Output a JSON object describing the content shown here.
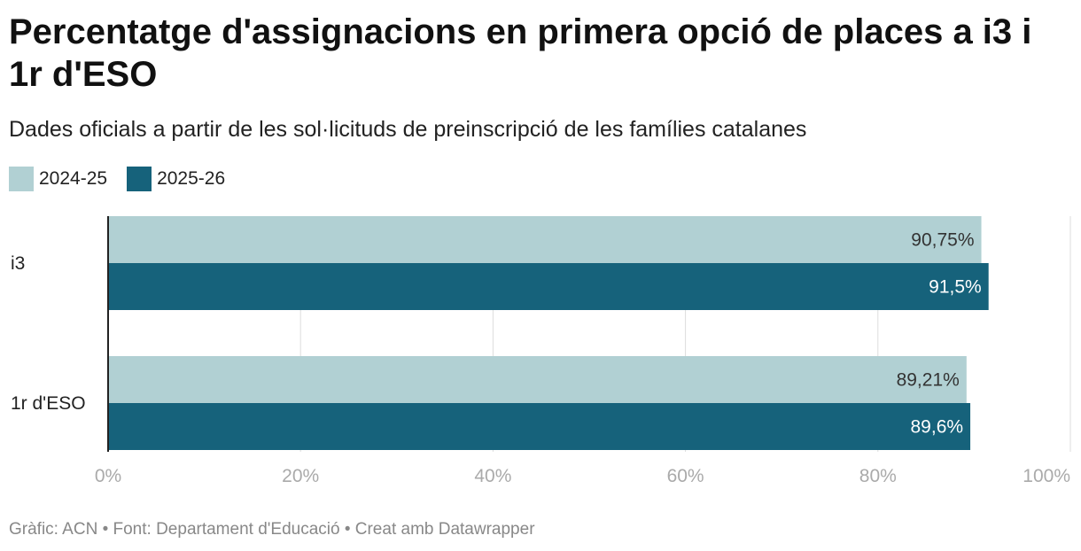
{
  "header": {
    "title": "Percentatge d'assignacions en primera opció de places a i3 i 1r d'ESO",
    "subtitle": "Dades oficials a partir de les sol·licituds de preinscripció de les famílies catalanes"
  },
  "footer": {
    "credit": "Gràfic: ACN • Font: Departament d'Educació • Creat amb Datawrapper"
  },
  "colors": {
    "series_2024": "#b1d0d3",
    "series_2025": "#16627b",
    "axis_text": "#aaaaaa",
    "grid": "#dddddd"
  },
  "chart_data": {
    "type": "bar",
    "orientation": "horizontal",
    "title": "Percentatge d'assignacions en primera opció de places a i3 i 1r d'ESO",
    "subtitle": "Dades oficials a partir de les sol·licituds de preinscripció de les famílies catalanes",
    "categories": [
      "i3",
      "1r d'ESO"
    ],
    "series": [
      {
        "name": "2024-25",
        "values": [
          90.75,
          89.21
        ],
        "labels": [
          "90,75%",
          "89,21%"
        ],
        "color": "#b1d0d3",
        "label_color": "#333333"
      },
      {
        "name": "2025-26",
        "values": [
          91.5,
          89.6
        ],
        "labels": [
          "91,5%",
          "89,6%"
        ],
        "color": "#16627b",
        "label_color": "#ffffff"
      }
    ],
    "xlim": [
      0,
      100
    ],
    "xticks": [
      0,
      20,
      40,
      60,
      80,
      100
    ],
    "xtick_labels": [
      "0%",
      "20%",
      "40%",
      "60%",
      "80%",
      "100%"
    ],
    "xlabel": "",
    "ylabel": "",
    "grid": true,
    "legend_position": "top-left"
  }
}
